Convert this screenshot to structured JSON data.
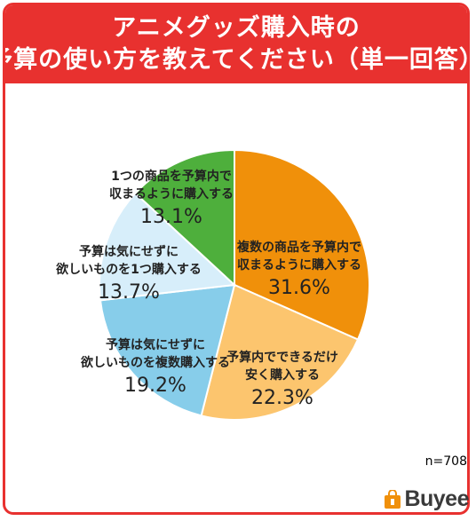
{
  "title": {
    "line1": "アニメグッズ購入時の",
    "line2": "予算の使い方を教えてください（単一回答）"
  },
  "n_label": "n=708",
  "logo": {
    "text": "Buyee",
    "icon": "shopping-bag-icon"
  },
  "colors": {
    "title_bg": "#e8312f",
    "slices": [
      "#f0900a",
      "#fcc56e",
      "#87cdea",
      "#d7eefa",
      "#4eaf3c"
    ]
  },
  "chart_data": {
    "type": "pie",
    "slices": [
      {
        "label": [
          "複数の商品を予算内で",
          "収まるように購入する"
        ],
        "value": 31.6,
        "value_text": "31.6%"
      },
      {
        "label": [
          "予算内でできるだけ",
          "安く購入する"
        ],
        "value": 22.3,
        "value_text": "22.3%"
      },
      {
        "label": [
          "予算は気にせずに",
          "欲しいものを複数購入する"
        ],
        "value": 19.2,
        "value_text": "19.2%"
      },
      {
        "label": [
          "予算は気にせずに",
          "欲しいものを1つ購入する"
        ],
        "value": 13.7,
        "value_text": "13.7%"
      },
      {
        "label": [
          "1つの商品を予算内で",
          "収まるように購入する"
        ],
        "value": 13.1,
        "value_text": "13.1%"
      }
    ]
  }
}
